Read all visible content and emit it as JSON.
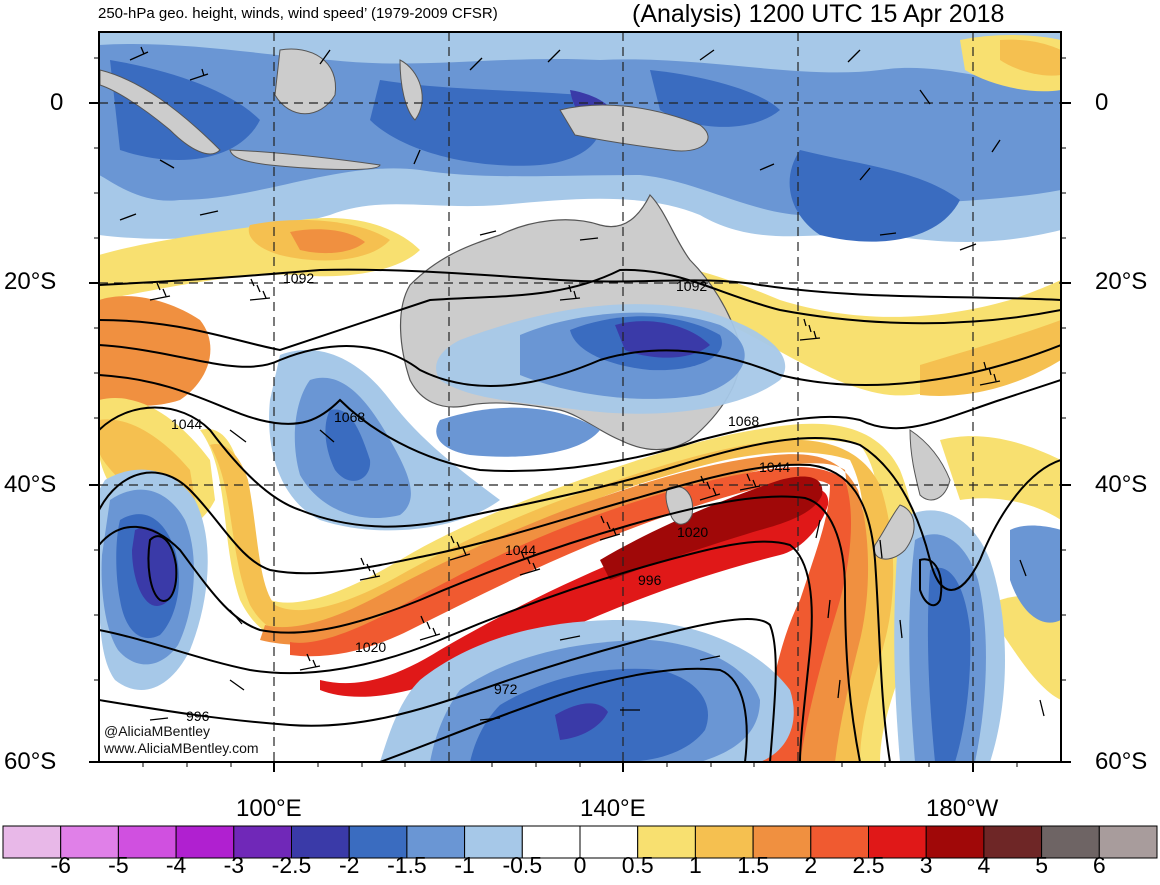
{
  "title_left": "250-hPa geo. height, winds, wind speed’ (1979-2009 CFSR)",
  "title_right": "(Analysis) 1200 UTC 15 Apr 2018",
  "lat_labels": [
    "0",
    "20°S",
    "40°S",
    "60°S"
  ],
  "lon_labels": [
    "100°E",
    "140°E",
    "180°W"
  ],
  "contour_labels": [
    "1092",
    "1092",
    "1068",
    "1068",
    "1044",
    "1044",
    "1044",
    "1020",
    "1020",
    "996",
    "996",
    "972"
  ],
  "credit": {
    "handle": "@AliciaMBentley",
    "site": "www.AliciaMBentley.com"
  },
  "colorbar": {
    "labels": [
      "-6",
      "-5",
      "-4",
      "-3",
      "-2.5",
      "-2",
      "-1.5",
      "-1",
      "-0.5",
      "0",
      "0.5",
      "1",
      "1.5",
      "2",
      "2.5",
      "3",
      "4",
      "5",
      "6"
    ],
    "colors": [
      "#e8b8e8",
      "#e080e8",
      "#d050e0",
      "#b020d0",
      "#7028b8",
      "#3a3aa8",
      "#3a6cc0",
      "#6a96d4",
      "#a6c8e8",
      "#ffffff",
      "#ffffff",
      "#f8e070",
      "#f5c050",
      "#f09040",
      "#f05a30",
      "#e01818",
      "#a00808",
      "#6e2626",
      "#6e6464",
      "#a89c9c"
    ]
  },
  "chart_data": {
    "type": "map",
    "variable": "250-hPa wind speed anomaly (standardized)",
    "lat_range": [
      "10°N",
      "60°S"
    ],
    "lon_range": [
      "80°E",
      "170°W"
    ],
    "height_contours_dam": [
      1092,
      1068,
      1044,
      1020,
      996,
      972
    ],
    "grid": true
  }
}
